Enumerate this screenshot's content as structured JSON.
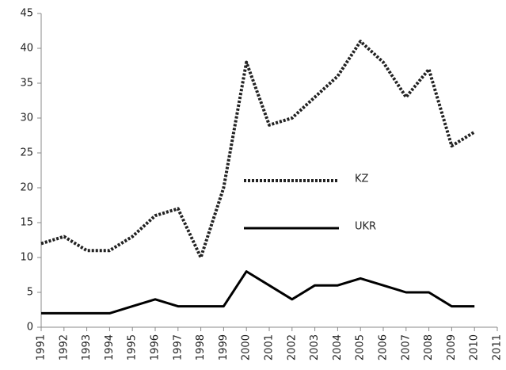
{
  "chart_data": {
    "type": "line",
    "x": [
      1991,
      1992,
      1993,
      1994,
      1995,
      1996,
      1997,
      1998,
      1999,
      2000,
      2001,
      2002,
      2003,
      2004,
      2005,
      2006,
      2007,
      2008,
      2009,
      2010
    ],
    "series": [
      {
        "name": "KZ",
        "color": "#222222",
        "dash": "dotted",
        "values": [
          12,
          13,
          11,
          11,
          13,
          16,
          17,
          10,
          20,
          38,
          29,
          30,
          33,
          36,
          41,
          38,
          33,
          37,
          26,
          28
        ]
      },
      {
        "name": "UKR",
        "color": "#000000",
        "dash": "solid",
        "values": [
          2,
          2,
          2,
          2,
          3,
          4,
          3,
          3,
          3,
          8,
          6,
          4,
          6,
          6,
          7,
          6,
          5,
          5,
          3,
          3
        ]
      }
    ],
    "xlim": [
      1991,
      2011
    ],
    "xticks": [
      1991,
      1992,
      1993,
      1994,
      1995,
      1996,
      1997,
      1998,
      1999,
      2000,
      2001,
      2002,
      2003,
      2004,
      2005,
      2006,
      2007,
      2008,
      2009,
      2010,
      2011
    ],
    "ylim": [
      0,
      45
    ],
    "yticks": [
      0,
      5,
      10,
      15,
      20,
      25,
      30,
      35,
      40,
      45
    ],
    "grid": false,
    "legend": "center"
  }
}
